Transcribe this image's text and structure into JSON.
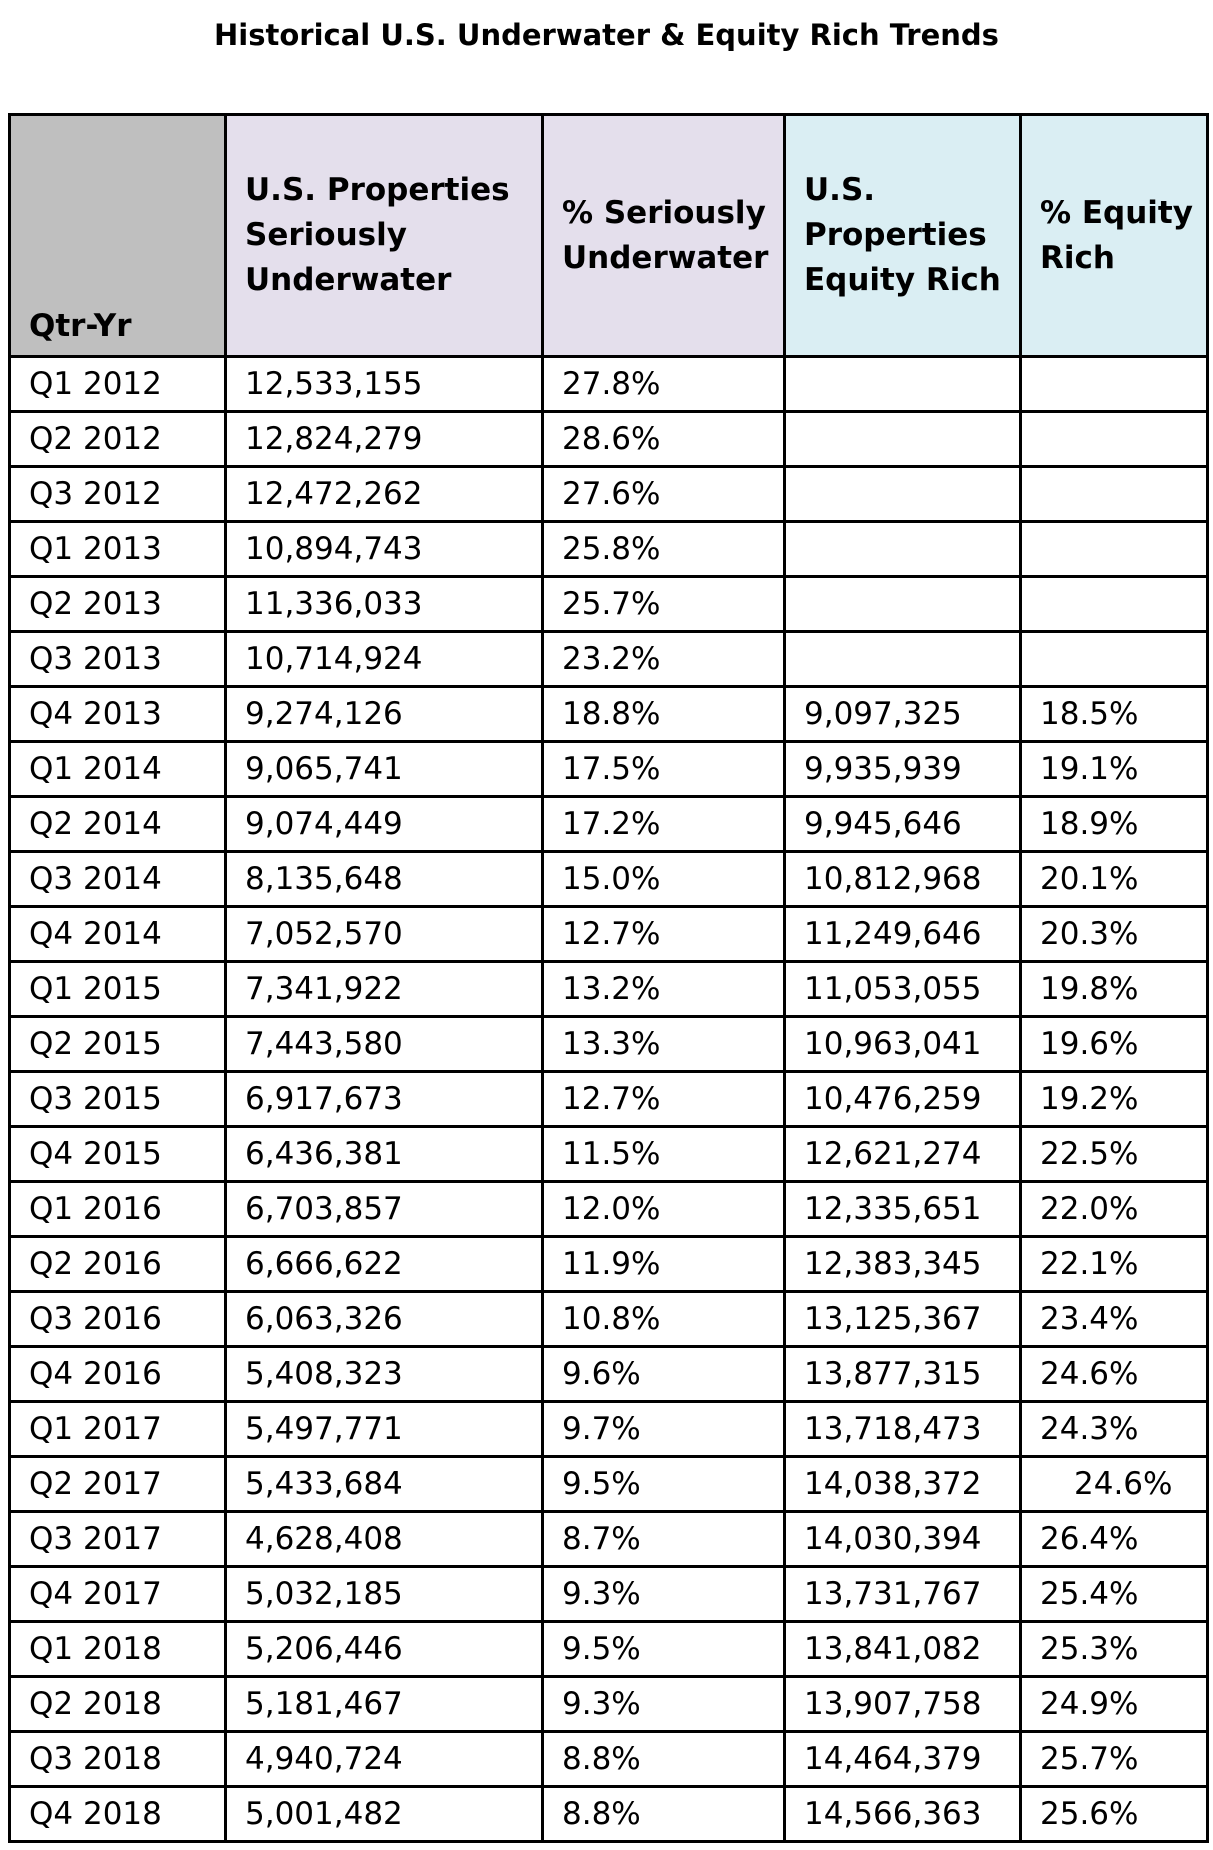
{
  "title": "Historical U.S. Underwater & Equity Rich Trends",
  "header_colors": {
    "qtr_yr": "#bfbfbf",
    "underwater": "#e4dfec",
    "equity_rich": "#daeef3"
  },
  "chart_data": {
    "type": "table",
    "title": "Historical U.S. Underwater & Equity Rich Trends",
    "columns": [
      "Qtr-Yr",
      "U.S. Properties Seriously Underwater",
      "% Seriously Underwater",
      "U.S. Properties Equity Rich",
      "% Equity Rich"
    ],
    "rows": [
      [
        "Q1 2012",
        "12,533,155",
        "27.8%",
        "",
        ""
      ],
      [
        "Q2 2012",
        "12,824,279",
        "28.6%",
        "",
        ""
      ],
      [
        "Q3 2012",
        "12,472,262",
        "27.6%",
        "",
        ""
      ],
      [
        "Q1 2013",
        "10,894,743",
        "25.8%",
        "",
        ""
      ],
      [
        "Q2 2013",
        "11,336,033",
        "25.7%",
        "",
        ""
      ],
      [
        "Q3 2013",
        "10,714,924",
        "23.2%",
        "",
        ""
      ],
      [
        "Q4 2013",
        "9,274,126",
        "18.8%",
        "9,097,325",
        "18.5%"
      ],
      [
        "Q1 2014",
        "9,065,741",
        "17.5%",
        "9,935,939",
        "19.1%"
      ],
      [
        "Q2 2014",
        "9,074,449",
        "17.2%",
        "9,945,646",
        "18.9%"
      ],
      [
        "Q3 2014",
        "8,135,648",
        "15.0%",
        "10,812,968",
        "20.1%"
      ],
      [
        "Q4 2014",
        "7,052,570",
        "12.7%",
        "11,249,646",
        "20.3%"
      ],
      [
        "Q1 2015",
        "7,341,922",
        "13.2%",
        "11,053,055",
        "19.8%"
      ],
      [
        "Q2 2015",
        "7,443,580",
        "13.3%",
        "10,963,041",
        "19.6%"
      ],
      [
        "Q3 2015",
        "6,917,673",
        "12.7%",
        "10,476,259",
        "19.2%"
      ],
      [
        "Q4 2015",
        "6,436,381",
        "11.5%",
        "12,621,274",
        "22.5%"
      ],
      [
        "Q1 2016",
        "6,703,857",
        "12.0%",
        "12,335,651",
        "22.0%"
      ],
      [
        "Q2 2016",
        "6,666,622",
        "11.9%",
        "12,383,345",
        "22.1%"
      ],
      [
        "Q3 2016",
        "6,063,326",
        "10.8%",
        "13,125,367",
        "23.4%"
      ],
      [
        "Q4 2016",
        "5,408,323",
        "9.6%",
        "13,877,315",
        "24.6%"
      ],
      [
        "Q1 2017",
        "5,497,771",
        "9.7%",
        "13,718,473",
        "24.3%"
      ],
      [
        "Q2 2017",
        "5,433,684",
        "9.5%",
        "14,038,372",
        "24.6%"
      ],
      [
        "Q3 2017",
        "4,628,408",
        "8.7%",
        "14,030,394",
        "26.4%"
      ],
      [
        "Q4 2017",
        "5,032,185",
        "9.3%",
        "13,731,767",
        "25.4%"
      ],
      [
        "Q1 2018",
        "5,206,446",
        "9.5%",
        "13,841,082",
        "25.3%"
      ],
      [
        "Q2 2018",
        "5,181,467",
        "9.3%",
        "13,907,758",
        "24.9%"
      ],
      [
        "Q3 2018",
        "4,940,724",
        "8.8%",
        "14,464,379",
        "25.7%"
      ],
      [
        "Q4 2018",
        "5,001,482",
        "8.8%",
        "14,566,363",
        "25.6%"
      ]
    ]
  }
}
